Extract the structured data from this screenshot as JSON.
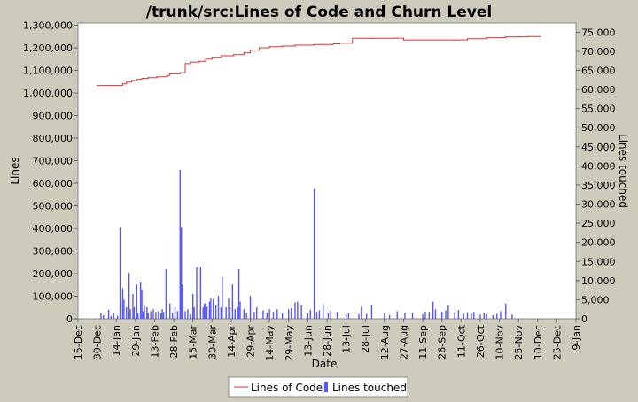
{
  "chart_data": {
    "type": "line",
    "title": "/trunk/src:Lines of Code and Churn Level",
    "xlabel": "Date",
    "ylabel_left": "Lines",
    "ylabel_right": "Lines touched",
    "grid": false,
    "legend_position": "bottom",
    "x_tick_labels": [
      "15-Dec",
      "30-Dec",
      "14-Jan",
      "29-Jan",
      "13-Feb",
      "28-Feb",
      "15-Mar",
      "30-Mar",
      "14-Apr",
      "29-Apr",
      "14-May",
      "29-May",
      "13-Jun",
      "28-Jun",
      "13-Jul",
      "28-Jul",
      "12-Aug",
      "27-Aug",
      "11-Sep",
      "26-Sep",
      "11-Oct",
      "26-Oct",
      "10-Nov",
      "25-Nov",
      "10-Dec",
      "25-Dec",
      "9-Jan"
    ],
    "xlim_days": [
      0,
      390
    ],
    "y_left_ticks": [
      "0",
      "100,000",
      "200,000",
      "300,000",
      "400,000",
      "500,000",
      "600,000",
      "700,000",
      "800,000",
      "900,000",
      "1,000,000",
      "1,100,000",
      "1,200,000",
      "1,300,000"
    ],
    "y_left_lim": [
      0,
      1310000
    ],
    "y_right_ticks": [
      "0",
      "5,000",
      "10,000",
      "15,000",
      "20,000",
      "25,000",
      "30,000",
      "35,000",
      "40,000",
      "45,000",
      "50,000",
      "55,000",
      "60,000",
      "65,000",
      "70,000",
      "75,000"
    ],
    "y_right_lim": [
      0,
      77400
    ],
    "series": [
      {
        "name": "Lines of Code",
        "axis": "left",
        "color": "#dd3333",
        "points": [
          [
            15,
            1033000
          ],
          [
            33,
            1033000
          ],
          [
            35,
            1040000
          ],
          [
            38,
            1048000
          ],
          [
            42,
            1055000
          ],
          [
            46,
            1060000
          ],
          [
            50,
            1065000
          ],
          [
            55,
            1068000
          ],
          [
            62,
            1072000
          ],
          [
            70,
            1078000
          ],
          [
            72,
            1085000
          ],
          [
            80,
            1090000
          ],
          [
            84,
            1130000
          ],
          [
            88,
            1137000
          ],
          [
            95,
            1140000
          ],
          [
            100,
            1150000
          ],
          [
            105,
            1158000
          ],
          [
            112,
            1165000
          ],
          [
            122,
            1170000
          ],
          [
            130,
            1178000
          ],
          [
            135,
            1190000
          ],
          [
            142,
            1200000
          ],
          [
            150,
            1205000
          ],
          [
            160,
            1208000
          ],
          [
            170,
            1212000
          ],
          [
            185,
            1215000
          ],
          [
            200,
            1218000
          ],
          [
            205,
            1221000
          ],
          [
            215,
            1242000
          ],
          [
            230,
            1242000
          ],
          [
            248,
            1243000
          ],
          [
            255,
            1235000
          ],
          [
            275,
            1235000
          ],
          [
            295,
            1235000
          ],
          [
            305,
            1240000
          ],
          [
            320,
            1245000
          ],
          [
            335,
            1248000
          ],
          [
            345,
            1249000
          ],
          [
            352,
            1250000
          ],
          [
            362,
            1250000
          ]
        ]
      },
      {
        "name": "Lines touched",
        "axis": "right",
        "color": "#5555ff",
        "points": [
          [
            18,
            1400
          ],
          [
            20,
            900
          ],
          [
            24,
            2400
          ],
          [
            26,
            700
          ],
          [
            28,
            1500
          ],
          [
            31,
            800
          ],
          [
            33,
            24000
          ],
          [
            35,
            8000
          ],
          [
            36,
            5000
          ],
          [
            38,
            3000
          ],
          [
            40,
            12000
          ],
          [
            41,
            2500
          ],
          [
            43,
            6500
          ],
          [
            44,
            3000
          ],
          [
            46,
            9000
          ],
          [
            47,
            1500
          ],
          [
            49,
            9500
          ],
          [
            50,
            7500
          ],
          [
            51,
            2000
          ],
          [
            52,
            3500
          ],
          [
            54,
            3000
          ],
          [
            55,
            1500
          ],
          [
            57,
            2000
          ],
          [
            59,
            2500
          ],
          [
            61,
            1800
          ],
          [
            63,
            2000
          ],
          [
            65,
            1500
          ],
          [
            66,
            2500
          ],
          [
            67,
            1800
          ],
          [
            69,
            13000
          ],
          [
            72,
            4000
          ],
          [
            74,
            1500
          ],
          [
            76,
            3000
          ],
          [
            78,
            2000
          ],
          [
            80,
            39000
          ],
          [
            81,
            24000
          ],
          [
            82,
            9000
          ],
          [
            84,
            2000
          ],
          [
            86,
            2500
          ],
          [
            88,
            1200
          ],
          [
            90,
            6500
          ],
          [
            91,
            3000
          ],
          [
            93,
            13500
          ],
          [
            96,
            13500
          ],
          [
            98,
            3000
          ],
          [
            99,
            4000
          ],
          [
            100,
            4000
          ],
          [
            101,
            3200
          ],
          [
            103,
            4500
          ],
          [
            104,
            5500
          ],
          [
            106,
            5200
          ],
          [
            108,
            3500
          ],
          [
            110,
            6000
          ],
          [
            112,
            3000
          ],
          [
            113,
            11000
          ],
          [
            116,
            3000
          ],
          [
            118,
            5500
          ],
          [
            119,
            3000
          ],
          [
            121,
            9000
          ],
          [
            123,
            2500
          ],
          [
            125,
            3000
          ],
          [
            126,
            13000
          ],
          [
            127,
            4500
          ],
          [
            130,
            2500
          ],
          [
            132,
            1500
          ],
          [
            135,
            6000
          ],
          [
            138,
            1800
          ],
          [
            140,
            3000
          ],
          [
            145,
            2200
          ],
          [
            148,
            1500
          ],
          [
            150,
            2500
          ],
          [
            153,
            1800
          ],
          [
            156,
            2500
          ],
          [
            160,
            1500
          ],
          [
            165,
            2500
          ],
          [
            167,
            2800
          ],
          [
            170,
            4300
          ],
          [
            172,
            4500
          ],
          [
            175,
            3500
          ],
          [
            180,
            1400
          ],
          [
            182,
            2400
          ],
          [
            185,
            34000
          ],
          [
            187,
            1800
          ],
          [
            189,
            2200
          ],
          [
            192,
            3800
          ],
          [
            196,
            1400
          ],
          [
            198,
            2300
          ],
          [
            203,
            1800
          ],
          [
            210,
            1200
          ],
          [
            212,
            1500
          ],
          [
            220,
            1200
          ],
          [
            222,
            3200
          ],
          [
            226,
            1300
          ],
          [
            230,
            3700
          ],
          [
            240,
            1500
          ],
          [
            244,
            1000
          ],
          [
            250,
            2000
          ],
          [
            256,
            1500
          ],
          [
            262,
            1600
          ],
          [
            270,
            1200
          ],
          [
            272,
            1900
          ],
          [
            275,
            1800
          ],
          [
            278,
            4500
          ],
          [
            280,
            2500
          ],
          [
            285,
            1800
          ],
          [
            288,
            2200
          ],
          [
            290,
            3500
          ],
          [
            295,
            1600
          ],
          [
            298,
            2300
          ],
          [
            302,
            1400
          ],
          [
            305,
            1700
          ],
          [
            308,
            1300
          ],
          [
            310,
            1800
          ],
          [
            315,
            1100
          ],
          [
            318,
            1600
          ],
          [
            320,
            1200
          ],
          [
            325,
            900
          ],
          [
            328,
            1300
          ],
          [
            331,
            2000
          ],
          [
            335,
            4000
          ],
          [
            340,
            1100
          ]
        ]
      }
    ]
  }
}
